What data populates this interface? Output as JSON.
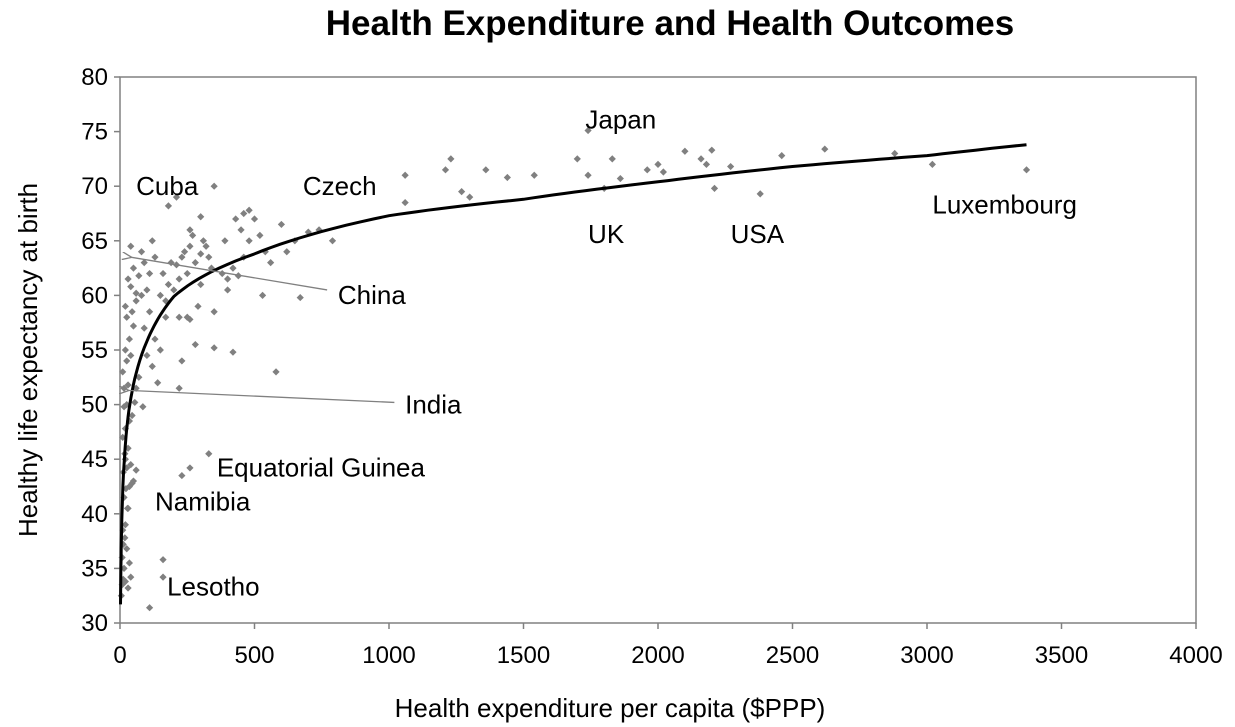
{
  "chart_data": {
    "type": "scatter",
    "title": "Health Expenditure and Health Outcomes",
    "xlabel": "Health expenditure per capita ($PPP)",
    "ylabel": "Healthy life expectancy at birth",
    "xlim": [
      0,
      4000
    ],
    "ylim": [
      30,
      80
    ],
    "xticks": [
      0,
      500,
      1000,
      1500,
      2000,
      2500,
      3000,
      3500,
      4000
    ],
    "yticks": [
      30,
      35,
      40,
      45,
      50,
      55,
      60,
      65,
      70,
      75,
      80
    ],
    "grid": false,
    "legend": "none",
    "marker_color": "#808080",
    "trend_color": "#000000",
    "trendline": {
      "type": "logarithmic",
      "points": [
        [
          2,
          31.7
        ],
        [
          10,
          42.0
        ],
        [
          30,
          48.9
        ],
        [
          100,
          55.8
        ],
        [
          200,
          59.9
        ],
        [
          500,
          63.8
        ],
        [
          1000,
          67.3
        ],
        [
          1500,
          68.8
        ],
        [
          2000,
          70.4
        ],
        [
          2500,
          71.8
        ],
        [
          3000,
          72.8
        ],
        [
          3370,
          73.8
        ]
      ]
    },
    "points": [
      [
        5,
        32.5
      ],
      [
        8,
        33.5
      ],
      [
        12,
        34.0
      ],
      [
        15,
        35.0
      ],
      [
        20,
        33.8
      ],
      [
        30,
        33.2
      ],
      [
        35,
        35.5
      ],
      [
        40,
        34.2
      ],
      [
        8,
        36.0
      ],
      [
        12,
        37.2
      ],
      [
        18,
        37.8
      ],
      [
        25,
        36.8
      ],
      [
        10,
        38.5
      ],
      [
        20,
        39.0
      ],
      [
        28,
        40.5
      ],
      [
        15,
        41.5
      ],
      [
        22,
        42.3
      ],
      [
        35,
        42.5
      ],
      [
        50,
        43.0
      ],
      [
        12,
        43.8
      ],
      [
        25,
        44.2
      ],
      [
        40,
        44.5
      ],
      [
        18,
        45.5
      ],
      [
        30,
        46.0
      ],
      [
        10,
        47.0
      ],
      [
        20,
        47.8
      ],
      [
        35,
        48.5
      ],
      [
        45,
        49.0
      ],
      [
        15,
        49.8
      ],
      [
        25,
        50.0
      ],
      [
        55,
        50.2
      ],
      [
        15,
        51.5
      ],
      [
        30,
        51.8
      ],
      [
        60,
        51.5
      ],
      [
        85,
        49.8
      ],
      [
        10,
        53.0
      ],
      [
        25,
        54.0
      ],
      [
        40,
        54.5
      ],
      [
        20,
        55.0
      ],
      [
        35,
        56.0
      ],
      [
        50,
        57.2
      ],
      [
        25,
        58.0
      ],
      [
        45,
        58.5
      ],
      [
        20,
        59.0
      ],
      [
        60,
        59.5
      ],
      [
        80,
        60.0
      ],
      [
        40,
        60.8
      ],
      [
        100,
        60.5
      ],
      [
        30,
        61.5
      ],
      [
        70,
        61.8
      ],
      [
        110,
        62.0
      ],
      [
        50,
        62.5
      ],
      [
        90,
        63.0
      ],
      [
        130,
        63.5
      ],
      [
        40,
        64.5
      ],
      [
        80,
        64.0
      ],
      [
        120,
        65.0
      ],
      [
        60,
        60.2
      ],
      [
        110,
        58.5
      ],
      [
        150,
        60.0
      ],
      [
        90,
        57.0
      ],
      [
        130,
        56.0
      ],
      [
        150,
        55.0
      ],
      [
        120,
        53.5
      ],
      [
        100,
        54.5
      ],
      [
        140,
        52.0
      ],
      [
        70,
        52.5
      ],
      [
        170,
        59.5
      ],
      [
        180,
        61.0
      ],
      [
        160,
        62.0
      ],
      [
        200,
        60.5
      ],
      [
        220,
        61.5
      ],
      [
        190,
        63.0
      ],
      [
        230,
        63.5
      ],
      [
        210,
        62.8
      ],
      [
        250,
        62.0
      ],
      [
        240,
        64.0
      ],
      [
        260,
        64.5
      ],
      [
        270,
        65.5
      ],
      [
        280,
        63.0
      ],
      [
        300,
        63.8
      ],
      [
        310,
        65.0
      ],
      [
        320,
        64.5
      ],
      [
        330,
        63.5
      ],
      [
        340,
        62.5
      ],
      [
        380,
        62.0
      ],
      [
        400,
        61.5
      ],
      [
        420,
        62.5
      ],
      [
        300,
        61.0
      ],
      [
        290,
        59.0
      ],
      [
        260,
        57.8
      ],
      [
        220,
        58.0
      ],
      [
        170,
        58.0
      ],
      [
        350,
        58.5
      ],
      [
        250,
        58.0
      ],
      [
        280,
        55.5
      ],
      [
        230,
        54.0
      ],
      [
        350,
        55.2
      ],
      [
        420,
        54.8
      ],
      [
        220,
        51.5
      ],
      [
        580,
        53.0
      ],
      [
        400,
        60.5
      ],
      [
        440,
        61.8
      ],
      [
        460,
        63.5
      ],
      [
        480,
        65.0
      ],
      [
        450,
        66.0
      ],
      [
        430,
        67.0
      ],
      [
        460,
        67.5
      ],
      [
        480,
        67.8
      ],
      [
        500,
        67.0
      ],
      [
        520,
        65.5
      ],
      [
        540,
        64.0
      ],
      [
        560,
        63.0
      ],
      [
        600,
        66.5
      ],
      [
        620,
        64.0
      ],
      [
        650,
        65.0
      ],
      [
        670,
        59.8
      ],
      [
        530,
        60.0
      ],
      [
        700,
        65.8
      ],
      [
        740,
        66.0
      ],
      [
        790,
        65.0
      ],
      [
        350,
        70.0
      ],
      [
        180,
        68.2
      ],
      [
        210,
        69.0
      ],
      [
        300,
        67.2
      ],
      [
        260,
        66.0
      ],
      [
        390,
        65.0
      ],
      [
        1060,
        71.0
      ],
      [
        1060,
        68.5
      ],
      [
        1210,
        71.5
      ],
      [
        1230,
        72.5
      ],
      [
        1270,
        69.5
      ],
      [
        1300,
        69.0
      ],
      [
        1360,
        71.5
      ],
      [
        1440,
        70.8
      ],
      [
        1540,
        71.0
      ],
      [
        1700,
        72.5
      ],
      [
        1740,
        71.0
      ],
      [
        1740,
        75.1
      ],
      [
        1800,
        69.8
      ],
      [
        1830,
        72.5
      ],
      [
        1860,
        70.7
      ],
      [
        1960,
        71.5
      ],
      [
        2000,
        72.0
      ],
      [
        2020,
        71.3
      ],
      [
        2100,
        73.2
      ],
      [
        2160,
        72.5
      ],
      [
        2180,
        72.0
      ],
      [
        2200,
        73.3
      ],
      [
        2210,
        69.8
      ],
      [
        2270,
        71.8
      ],
      [
        2380,
        69.3
      ],
      [
        2460,
        72.8
      ],
      [
        2620,
        73.4
      ],
      [
        2880,
        73.0
      ],
      [
        3020,
        72.0
      ],
      [
        3370,
        71.5
      ],
      [
        230,
        43.5
      ],
      [
        260,
        44.2
      ],
      [
        330,
        45.5
      ],
      [
        160,
        35.8
      ],
      [
        160,
        34.2
      ],
      [
        110,
        31.4
      ],
      [
        45,
        42.8
      ],
      [
        30,
        40.5
      ],
      [
        60,
        44.0
      ],
      [
        20,
        45.0
      ]
    ],
    "annotations": [
      {
        "label": "Japan",
        "x": 1730,
        "y": 75.3
      },
      {
        "label": "Cuba",
        "x": 60,
        "y": 69.2
      },
      {
        "label": "Czech",
        "x": 680,
        "y": 69.2
      },
      {
        "label": "UK",
        "x": 1740,
        "y": 64.8
      },
      {
        "label": "USA",
        "x": 2270,
        "y": 64.8
      },
      {
        "label": "Luxembourg",
        "x": 3020,
        "y": 67.5
      },
      {
        "label": "China",
        "x": 810,
        "y": 59.2
      },
      {
        "label": "India",
        "x": 1060,
        "y": 49.2
      },
      {
        "label": "Equatorial Guinea",
        "x": 360,
        "y": 43.4
      },
      {
        "label": "Namibia",
        "x": 130,
        "y": 40.3
      },
      {
        "label": "Lesotho",
        "x": 175,
        "y": 32.5
      }
    ],
    "arrows": [
      {
        "from": [
          770,
          60.5
        ],
        "to": [
          40,
          63.5
        ],
        "target": "China"
      },
      {
        "from": [
          1020,
          50.2
        ],
        "to": [
          30,
          51.3
        ],
        "target": "India"
      }
    ]
  }
}
